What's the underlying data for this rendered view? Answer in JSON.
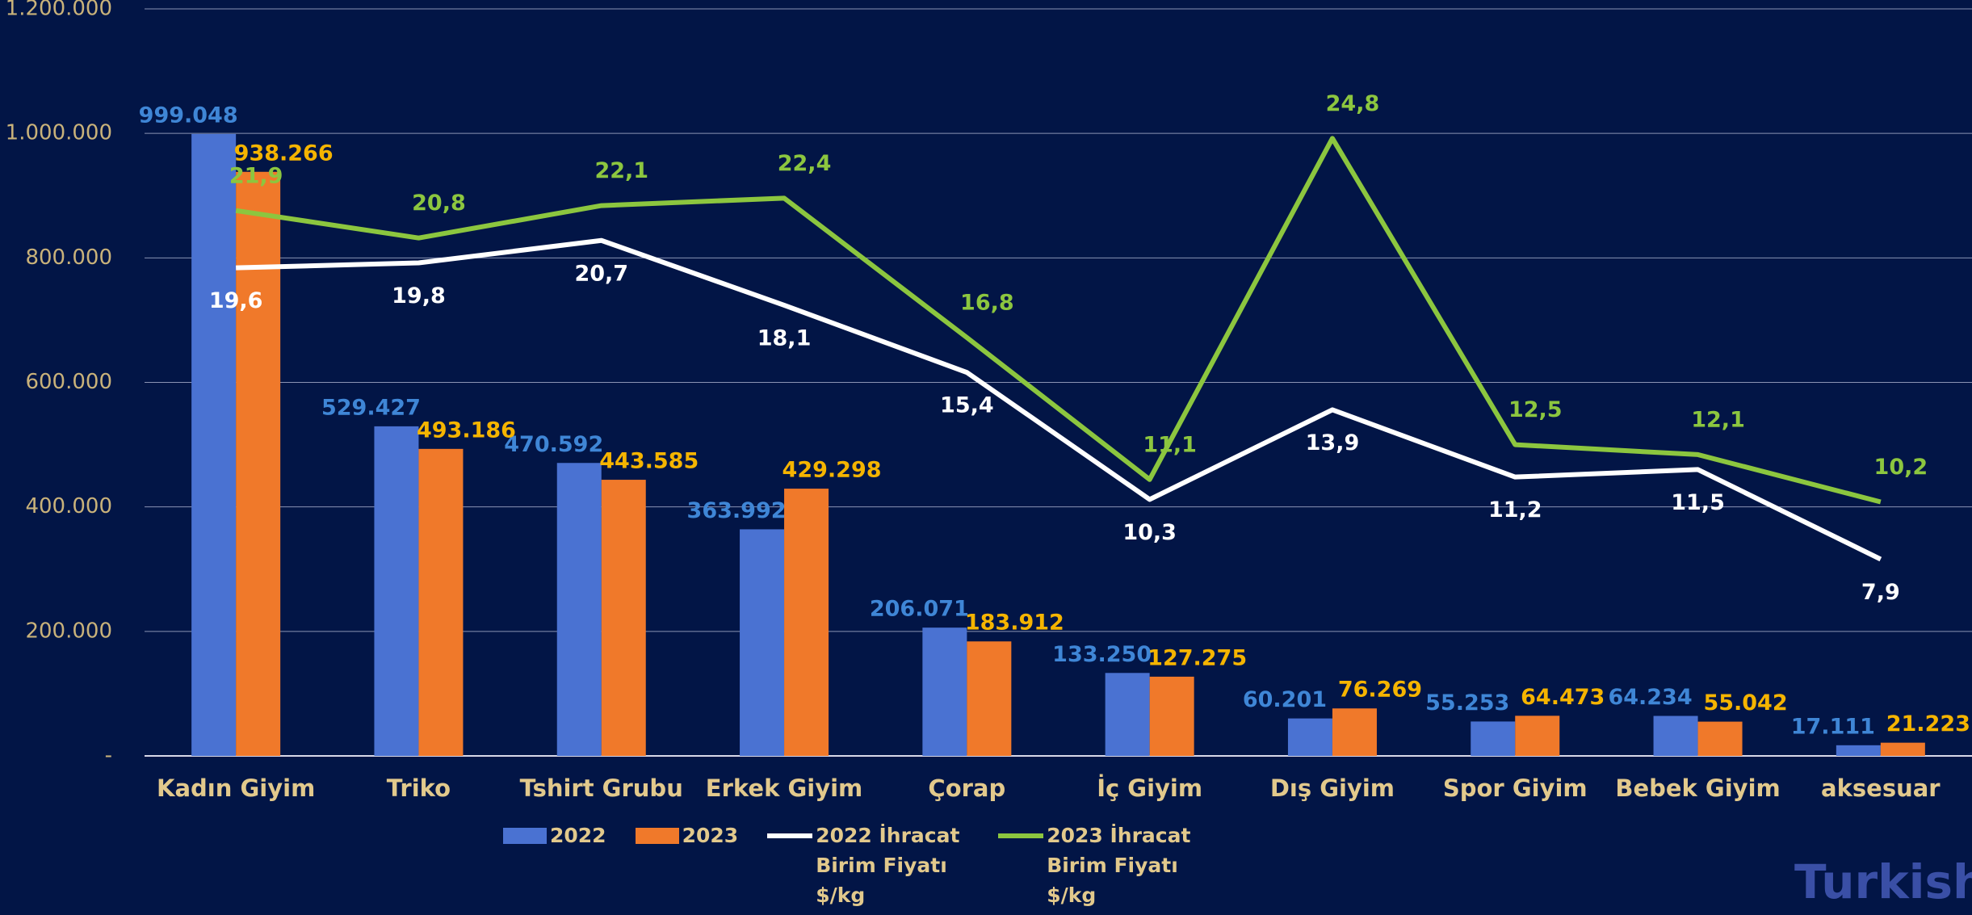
{
  "chart_data": {
    "type": "bar-line",
    "categories": [
      "Kadın Giyim",
      "Triko",
      "Tshirt Grubu",
      "Erkek Giyim",
      "Çorap",
      "İç Giyim",
      "Dış Giyim",
      "Spor Giyim",
      "Bebek Giyim",
      "aksesuar"
    ],
    "ylim": [
      0,
      1200000
    ],
    "yticks": [
      {
        "value": 0,
        "label": "-"
      },
      {
        "value": 200000,
        "label": "200.000"
      },
      {
        "value": 400000,
        "label": "400.000"
      },
      {
        "value": 600000,
        "label": "600.000"
      },
      {
        "value": 800000,
        "label": "800.000"
      },
      {
        "value": 1000000,
        "label": "1.000.000"
      },
      {
        "value": 1200000,
        "label": "1.200.000"
      }
    ],
    "y2lim": [
      0,
      30
    ],
    "grid": true,
    "legend": "bottom",
    "series": [
      {
        "name": "2022",
        "type": "bar",
        "color": "#4a72d2",
        "label_color": "#3f86d6",
        "values": [
          999048,
          529427,
          470592,
          363992,
          206071,
          133250,
          60201,
          55253,
          64234,
          17111
        ],
        "value_labels": [
          "999.048",
          "529.427",
          "470.592",
          "363.992",
          "206.071",
          "133.250",
          "60.201",
          "55.253",
          "64.234",
          "17.111"
        ]
      },
      {
        "name": "2023",
        "type": "bar",
        "color": "#f0792a",
        "label_color": "#f5b400",
        "values": [
          938266,
          493186,
          443585,
          429298,
          183912,
          127275,
          76269,
          64473,
          55042,
          21223
        ],
        "value_labels": [
          "938.266",
          "493.186",
          "443.585",
          "429.298",
          "183.912",
          "127.275",
          "76.269",
          "64.473",
          "55.042",
          "21.223"
        ]
      },
      {
        "name": "2022 İhracat Birim Fiyatı $/kg",
        "type": "line",
        "axis": "y2",
        "color": "#ffffff",
        "label_color": "#ffffff",
        "values": [
          19.6,
          19.8,
          20.7,
          18.1,
          15.4,
          10.3,
          13.9,
          11.2,
          11.5,
          7.9
        ],
        "value_labels": [
          "19,6",
          "19,8",
          "20,7",
          "18,1",
          "15,4",
          "10,3",
          "13,9",
          "11,2",
          "11,5",
          "7,9"
        ]
      },
      {
        "name": "2023 İhracat Birim Fiyatı $/kg",
        "type": "line",
        "axis": "y2",
        "color": "#8cc63f",
        "label_color": "#8cc63f",
        "values": [
          21.9,
          20.8,
          22.1,
          22.4,
          16.8,
          11.1,
          24.8,
          12.5,
          12.1,
          10.2
        ],
        "value_labels": [
          "21,9",
          "20,8",
          "22,1",
          "22,4",
          "16,8",
          "11,1",
          "24,8",
          "12,5",
          "12,1",
          "10,2"
        ]
      }
    ],
    "watermark": "Turkish"
  }
}
